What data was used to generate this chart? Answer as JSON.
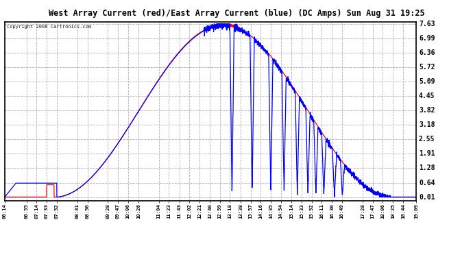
{
  "title": "West Array Current (red)/East Array Current (blue) (DC Amps) Sun Aug 31 19:25",
  "copyright": "Copyright 2008 Cartronics.com",
  "ylabel_values": [
    7.63,
    6.99,
    6.36,
    5.72,
    5.09,
    4.45,
    3.82,
    3.18,
    2.55,
    1.91,
    1.28,
    0.64,
    0.01
  ],
  "ymin": 0.01,
  "ymax": 7.63,
  "x_labels": [
    "06:14",
    "06:55",
    "07:14",
    "07:33",
    "07:52",
    "08:31",
    "08:50",
    "09:28",
    "09:47",
    "10:06",
    "10:26",
    "11:04",
    "11:23",
    "11:43",
    "12:02",
    "12:21",
    "12:40",
    "12:59",
    "13:18",
    "13:38",
    "13:57",
    "14:16",
    "14:35",
    "14:54",
    "15:14",
    "15:33",
    "15:52",
    "16:11",
    "16:30",
    "16:49",
    "17:28",
    "17:47",
    "18:06",
    "18:25",
    "18:44",
    "19:09"
  ],
  "background_color": "#ffffff",
  "plot_bg_color": "#ffffff",
  "grid_color": "#b0b0b0",
  "title_bg_color": "#d8d8d8",
  "red_color": "#ff0000",
  "blue_color": "#0000ff"
}
